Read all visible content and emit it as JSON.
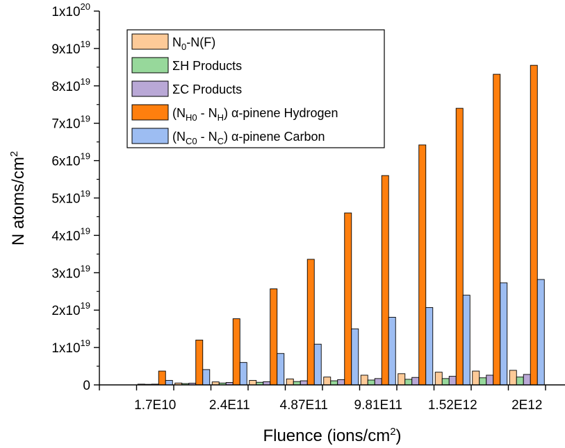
{
  "chart_data": {
    "type": "bar",
    "xlabel": "Fluence (ions/cm²)",
    "ylabel": "N atoms/cm²",
    "ylim": [
      0,
      1e+20
    ],
    "y_ticks": [
      0,
      1e+19,
      2e+19,
      3e+19,
      4e+19,
      5e+19,
      6e+19,
      7e+19,
      8e+19,
      9e+19,
      1e+20
    ],
    "y_tick_labels": [
      "0",
      "1x10^19",
      "2x10^19",
      "3x10^19",
      "4x10^19",
      "5x10^19",
      "6x10^19",
      "7x10^19",
      "8x10^19",
      "9x10^19",
      "1x10^20"
    ],
    "x_tick_labels": [
      "1.7E10",
      "2.4E11",
      "4.87E11",
      "9.81E11",
      "1.52E12",
      "2E12"
    ],
    "x_tick_label_positions": [
      1,
      3,
      5,
      7,
      9,
      11
    ],
    "groups": 12,
    "legend_position": "top-left",
    "grid": false,
    "series": [
      {
        "name": "N0-N(F)",
        "color": "#FDCA98",
        "values": [
          0,
          2e+17,
          5e+17,
          8e+17,
          1.2e+18,
          1.6e+18,
          2.1e+18,
          2.6e+18,
          3e+18,
          3.4e+18,
          3.7e+18,
          3.9e+18
        ]
      },
      {
        "name": "ΣH Products",
        "color": "#97D89B",
        "values": [
          0,
          1.5e+17,
          3.5e+17,
          5e+17,
          7e+17,
          9e+17,
          1.1e+18,
          1.3e+18,
          1.5e+18,
          1.7e+18,
          1.9e+18,
          2.1e+18
        ]
      },
      {
        "name": "ΣC Products",
        "color": "#B9A8D6",
        "values": [
          0,
          2e+17,
          4.5e+17,
          6.5e+17,
          8.5e+17,
          1.1e+18,
          1.4e+18,
          1.7e+18,
          2e+18,
          2.3e+18,
          2.6e+18,
          2.8e+18
        ]
      },
      {
        "name": "(NH0 - NH) α-pinene Hydrogen",
        "color": "#FF7F0E",
        "values": [
          0,
          3.7e+18,
          1.2e+19,
          1.77e+19,
          2.57e+19,
          3.36e+19,
          4.6e+19,
          5.6e+19,
          6.42e+19,
          7.4e+19,
          8.31e+19,
          8.55e+19
        ]
      },
      {
        "name": "(NC0 - NC) α-pinene Carbon",
        "color": "#9DBDF2",
        "values": [
          0,
          1.2e+18,
          4.1e+18,
          6e+18,
          8.4e+18,
          1.09e+19,
          1.5e+19,
          1.81e+19,
          2.07e+19,
          2.4e+19,
          2.73e+19,
          2.82e+19
        ]
      }
    ]
  },
  "legend": {
    "items": [
      {
        "main": "N",
        "sub1": "0",
        "mid": "-N(F)",
        "sub2": "",
        "tail": ""
      },
      {
        "main": "ΣH Products",
        "sub1": "",
        "mid": "",
        "sub2": "",
        "tail": ""
      },
      {
        "main": "ΣC Products",
        "sub1": "",
        "mid": "",
        "sub2": "",
        "tail": ""
      },
      {
        "main": "(N",
        "sub1": "H0",
        "mid": " - N",
        "sub2": "H",
        "tail": ") α-pinene Hydrogen"
      },
      {
        "main": "(N",
        "sub1": "C0",
        "mid": " - N",
        "sub2": "C",
        "tail": ") α-pinene Carbon"
      }
    ]
  },
  "axes_text": {
    "xlabel_main": "Fluence (ions/cm",
    "xlabel_sup": "2",
    "xlabel_end": ")",
    "ylabel_main": "N atoms/cm",
    "ylabel_sup": "2"
  }
}
